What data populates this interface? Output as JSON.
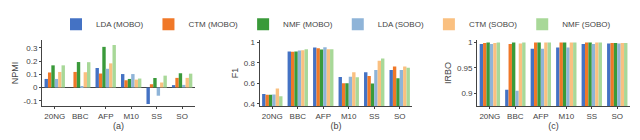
{
  "chart_data": [
    {
      "type": "bar",
      "xlabel": "(a)",
      "ylabel": "NPMI",
      "categories": [
        "20NG",
        "BBC",
        "AFP",
        "M10",
        "SS",
        "SO"
      ],
      "series": [
        {
          "name": "LDA (MOBO)",
          "color": "#4472c4",
          "values": [
            0.065,
            0.0,
            0.148,
            0.102,
            -0.125,
            0.018
          ]
        },
        {
          "name": "CTM (MOBO)",
          "color": "#f07828",
          "values": [
            0.114,
            0.118,
            0.106,
            0.055,
            0.025,
            0.073
          ]
        },
        {
          "name": "NMF (MOBO)",
          "color": "#3a9a3a",
          "values": [
            0.168,
            0.193,
            0.308,
            0.065,
            0.072,
            0.108
          ]
        },
        {
          "name": "LDA (SOBO)",
          "color": "#8fb4d8",
          "values": [
            0.065,
            0.01,
            0.142,
            0.102,
            -0.062,
            0.02
          ]
        },
        {
          "name": "CTM (SOBO)",
          "color": "#fac080",
          "values": [
            0.118,
            0.116,
            0.183,
            0.06,
            0.038,
            0.073
          ]
        },
        {
          "name": "NMF (SOBO)",
          "color": "#a8d898",
          "values": [
            0.168,
            0.192,
            0.322,
            0.068,
            0.09,
            0.105
          ]
        }
      ],
      "ylim": [
        -0.14,
        0.36
      ],
      "yticks": [
        -0.1,
        0,
        0.1,
        0.2,
        0.3
      ],
      "grid": false,
      "legend": "top"
    },
    {
      "type": "bar",
      "xlabel": "(b)",
      "ylabel": "F1",
      "categories": [
        "20NG",
        "BBC",
        "AFP",
        "M10",
        "SS",
        "SO"
      ],
      "series": [
        {
          "name": "LDA (MOBO)",
          "color": "#4472c4",
          "values": [
            0.496,
            0.908,
            0.947,
            0.661,
            0.708,
            0.73
          ]
        },
        {
          "name": "CTM (MOBO)",
          "color": "#f07828",
          "values": [
            0.49,
            0.905,
            0.94,
            0.6,
            0.67,
            0.762
          ]
        },
        {
          "name": "NMF (MOBO)",
          "color": "#3a9a3a",
          "values": [
            0.49,
            0.908,
            0.929,
            0.6,
            0.598,
            0.648
          ]
        },
        {
          "name": "LDA (SOBO)",
          "color": "#8fb4d8",
          "values": [
            0.492,
            0.919,
            0.95,
            0.663,
            0.728,
            0.73
          ]
        },
        {
          "name": "CTM (SOBO)",
          "color": "#fac080",
          "values": [
            0.55,
            0.921,
            0.931,
            0.708,
            0.818,
            0.763
          ]
        },
        {
          "name": "NMF (SOBO)",
          "color": "#a8d898",
          "values": [
            0.474,
            0.93,
            0.93,
            0.66,
            0.84,
            0.75
          ]
        }
      ],
      "ylim": [
        0.38,
        1.02
      ],
      "yticks": [
        0.4,
        0.6,
        0.8,
        1
      ],
      "grid": false
    },
    {
      "type": "bar",
      "xlabel": "(c)",
      "ylabel": "IRBO",
      "categories": [
        "20NG",
        "BBC",
        "AFP",
        "M10",
        "SS",
        "SO"
      ],
      "series": [
        {
          "name": "LDA (MOBO)",
          "color": "#4472c4",
          "values": [
            0.997,
            0.907,
            0.988,
            0.99,
            0.997,
            0.998
          ]
        },
        {
          "name": "CTM (MOBO)",
          "color": "#f07828",
          "values": [
            0.999,
            0.997,
            1.0,
            1.0,
            1.0,
            0.999
          ]
        },
        {
          "name": "NMF (MOBO)",
          "color": "#3a9a3a",
          "values": [
            1.0,
            1.0,
            1.0,
            1.0,
            1.0,
            0.999
          ]
        },
        {
          "name": "LDA (SOBO)",
          "color": "#8fb4d8",
          "values": [
            0.997,
            0.905,
            0.988,
            0.99,
            0.997,
            0.998
          ]
        },
        {
          "name": "CTM (SOBO)",
          "color": "#fac080",
          "values": [
            0.999,
            0.998,
            1.0,
            1.0,
            1.0,
            0.999
          ]
        },
        {
          "name": "NMF (SOBO)",
          "color": "#a8d898",
          "values": [
            1.0,
            1.0,
            1.0,
            1.0,
            1.0,
            0.999
          ]
        }
      ],
      "ylim": [
        0.875,
        1.005
      ],
      "yticks": [
        0.9,
        0.95,
        1
      ],
      "grid": false
    }
  ]
}
